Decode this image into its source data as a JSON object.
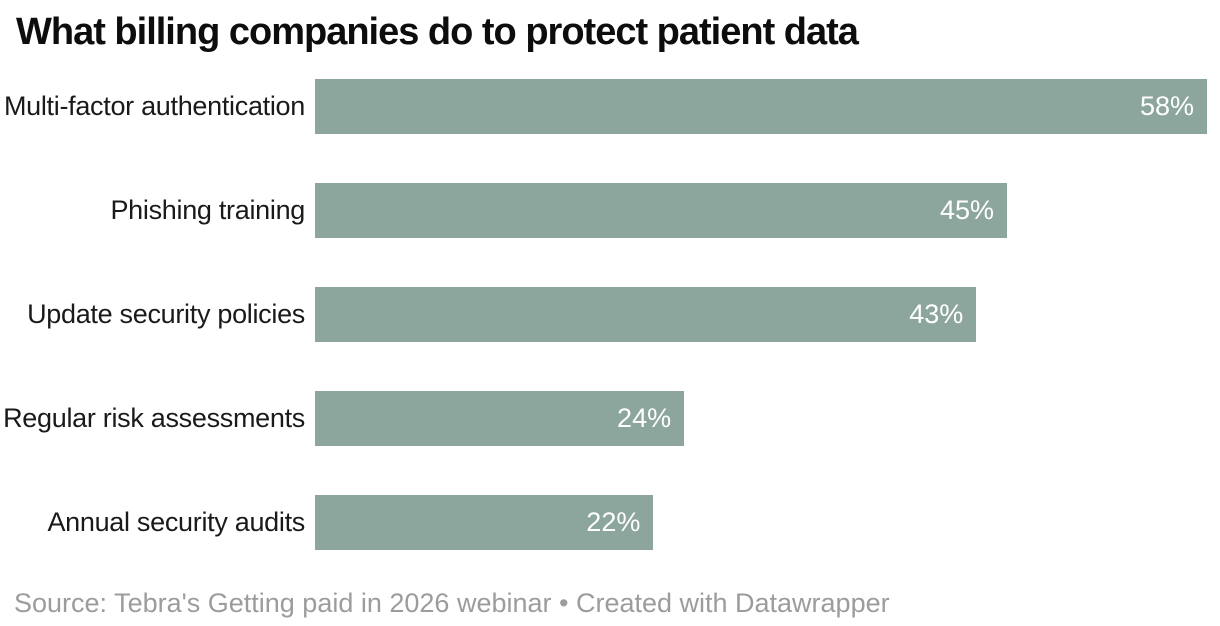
{
  "title": "What billing companies do to protect patient data",
  "footer": {
    "text": "Source: Tebra's Getting paid in 2026 webinar • Created with Datawrapper"
  },
  "chart_data": {
    "type": "bar",
    "orientation": "horizontal",
    "title": "What billing companies do to protect patient data",
    "categories": [
      "Multi-factor authentication",
      "Phishing training",
      "Update security policies",
      "Regular risk assessments",
      "Annual security audits"
    ],
    "values": [
      58,
      45,
      43,
      24,
      22
    ],
    "value_labels": [
      "58%",
      "45%",
      "43%",
      "24%",
      "22%"
    ],
    "unit": "%",
    "xlim": [
      0,
      58
    ],
    "grid": false,
    "legend": "none",
    "axis_ticks": "none",
    "bar_color": "#8CA69E",
    "value_label_color": "#FFFFFF",
    "category_label_color": "#1A1A1A",
    "title_color": "#0D0D0D",
    "footer_color": "#9C9C9C",
    "background": "#FFFFFF"
  }
}
